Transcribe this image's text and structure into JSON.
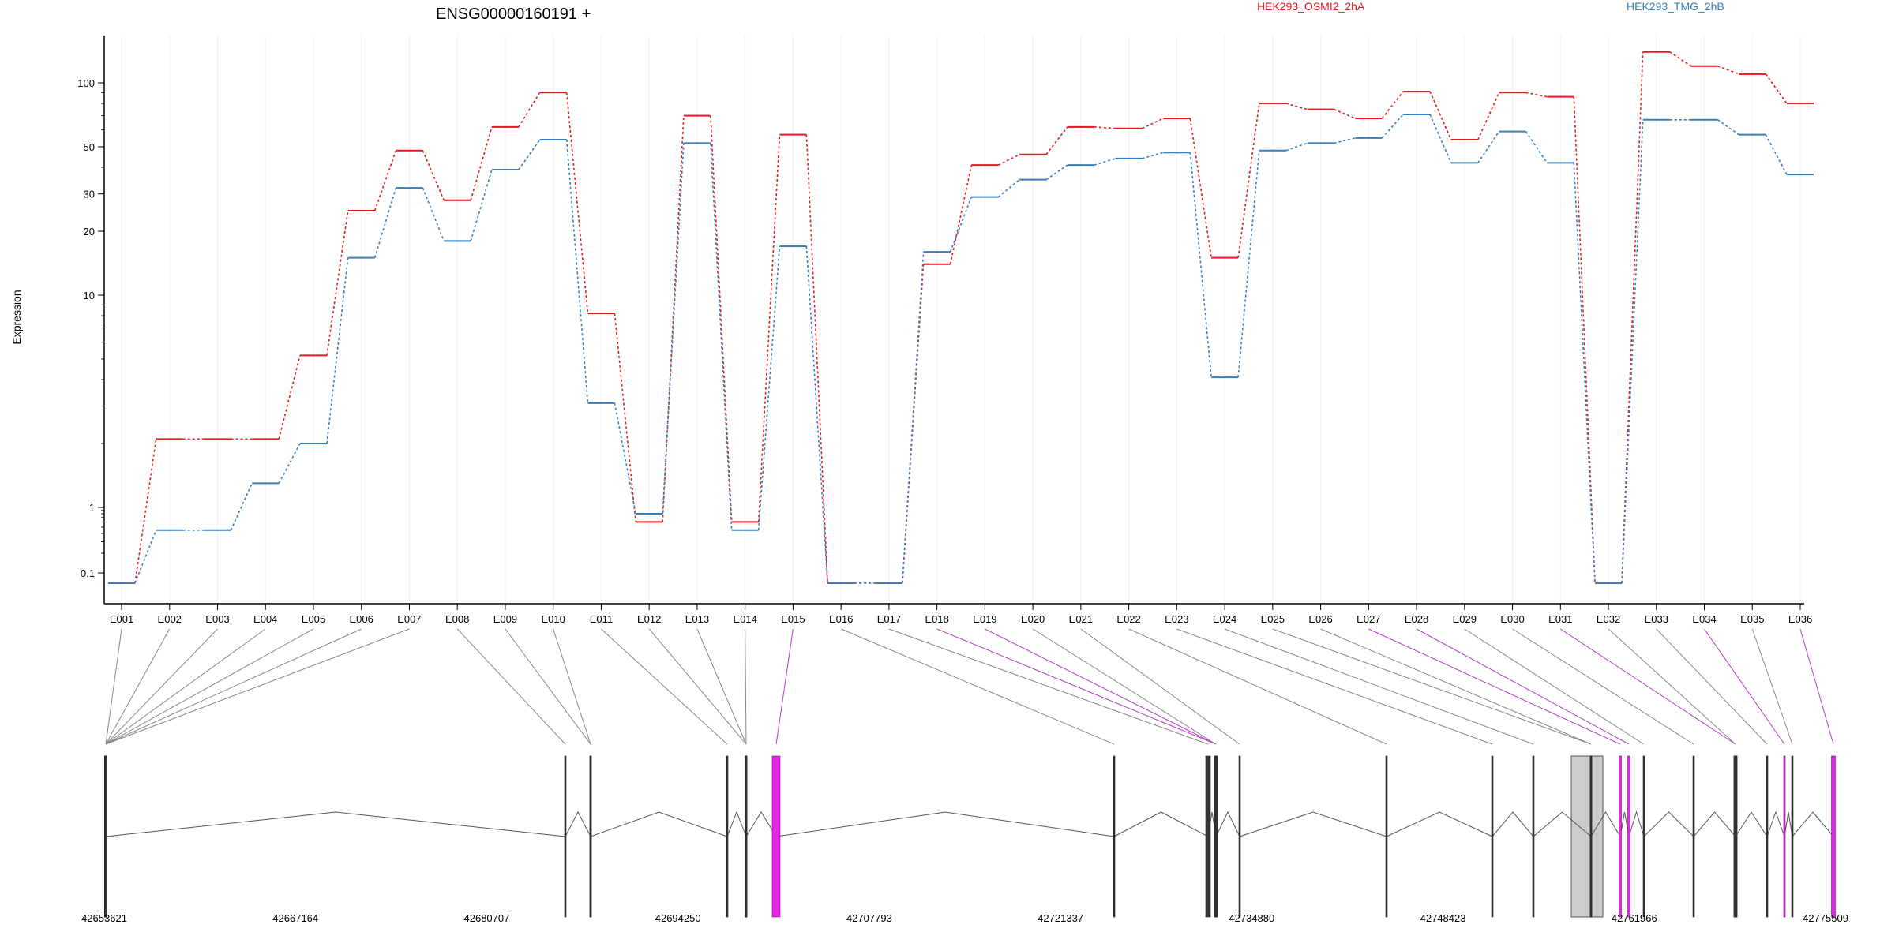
{
  "chart_data": {
    "type": "line",
    "title": "ENSG00000160191 +",
    "ylabel": "Expression",
    "y_scale": "log",
    "yticks": [
      "0.1",
      "1",
      "10",
      "20",
      "30",
      "50",
      "100"
    ],
    "categories": [
      "E001",
      "E002",
      "E003",
      "E004",
      "E005",
      "E006",
      "E007",
      "E008",
      "E009",
      "E010",
      "E011",
      "E012",
      "E013",
      "E014",
      "E015",
      "E016",
      "E017",
      "E018",
      "E019",
      "E020",
      "E021",
      "E022",
      "E023",
      "E024",
      "E025",
      "E026",
      "E027",
      "E028",
      "E029",
      "E030",
      "E031",
      "E032",
      "E033",
      "E034",
      "E035",
      "E036"
    ],
    "series": [
      {
        "name": "HEK293_OSMI2_2hA",
        "color": "#e41a1c",
        "values": [
          0.07,
          2.1,
          2.1,
          2.1,
          5.2,
          25,
          48,
          28,
          62,
          90,
          8.2,
          0.6,
          70,
          0.6,
          57,
          0.07,
          0.07,
          14,
          41,
          46,
          62,
          61,
          68,
          15,
          80,
          75,
          68,
          91,
          54,
          90,
          86,
          0.07,
          140,
          120,
          110,
          80
        ]
      },
      {
        "name": "HEK293_TMG_2hB",
        "color": "#377eb8",
        "values": [
          0.07,
          0.45,
          0.45,
          1.3,
          2.0,
          15,
          32,
          18,
          39,
          54,
          3.1,
          0.8,
          52,
          0.45,
          17,
          0.07,
          0.07,
          16,
          29,
          35,
          41,
          44,
          47,
          4.1,
          48,
          52,
          55,
          71,
          42,
          59,
          42,
          0.07,
          67,
          67,
          57,
          37
        ]
      }
    ],
    "legend_placement": "top",
    "genomic_axis_labels": [
      "42653621",
      "42667164",
      "42680707",
      "42694250",
      "42707793",
      "42721337",
      "42734880",
      "42748423",
      "42761966",
      "42775509"
    ]
  },
  "annotation": {
    "highlight_exons": [
      "E015",
      "E018",
      "E019",
      "E027",
      "E028",
      "E031",
      "E034",
      "E036"
    ],
    "highlight_color": "#e427e4",
    "intron_color": "#555555"
  }
}
